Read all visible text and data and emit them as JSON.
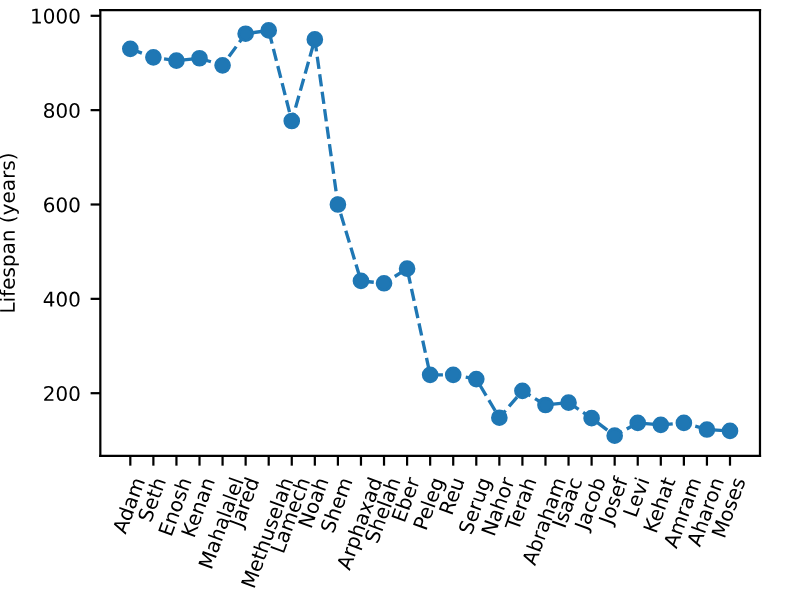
{
  "chart_data": {
    "type": "line",
    "ylabel": "Lifespan (years)",
    "categories": [
      "Adam",
      "Seth",
      "Enosh",
      "Kenan",
      "Mahalalel",
      "Jared",
      "Methuselah",
      "Lamech",
      "Noah",
      "Shem",
      "Arphaxad",
      "Shelah",
      "Eber",
      "Peleg",
      "Reu",
      "Serug",
      "Nahor",
      "Terah",
      "Abraham",
      "Isaac",
      "Jacob",
      "Josef",
      "Levi",
      "Kehat",
      "Amram",
      "Aharon",
      "Moses"
    ],
    "series": [
      {
        "color": "#1f77b4",
        "values": [
          930,
          912,
          905,
          910,
          895,
          962,
          969,
          777,
          950,
          600,
          438,
          433,
          464,
          239,
          239,
          230,
          148,
          205,
          175,
          180,
          147,
          110,
          137,
          133,
          137,
          123,
          120
        ]
      }
    ],
    "ylim": [
      67,
      1012
    ],
    "yticks": [
      200,
      400,
      600,
      800,
      1000
    ],
    "marker": "circle",
    "line_style": "dashed",
    "grid": false,
    "legend": false
  }
}
